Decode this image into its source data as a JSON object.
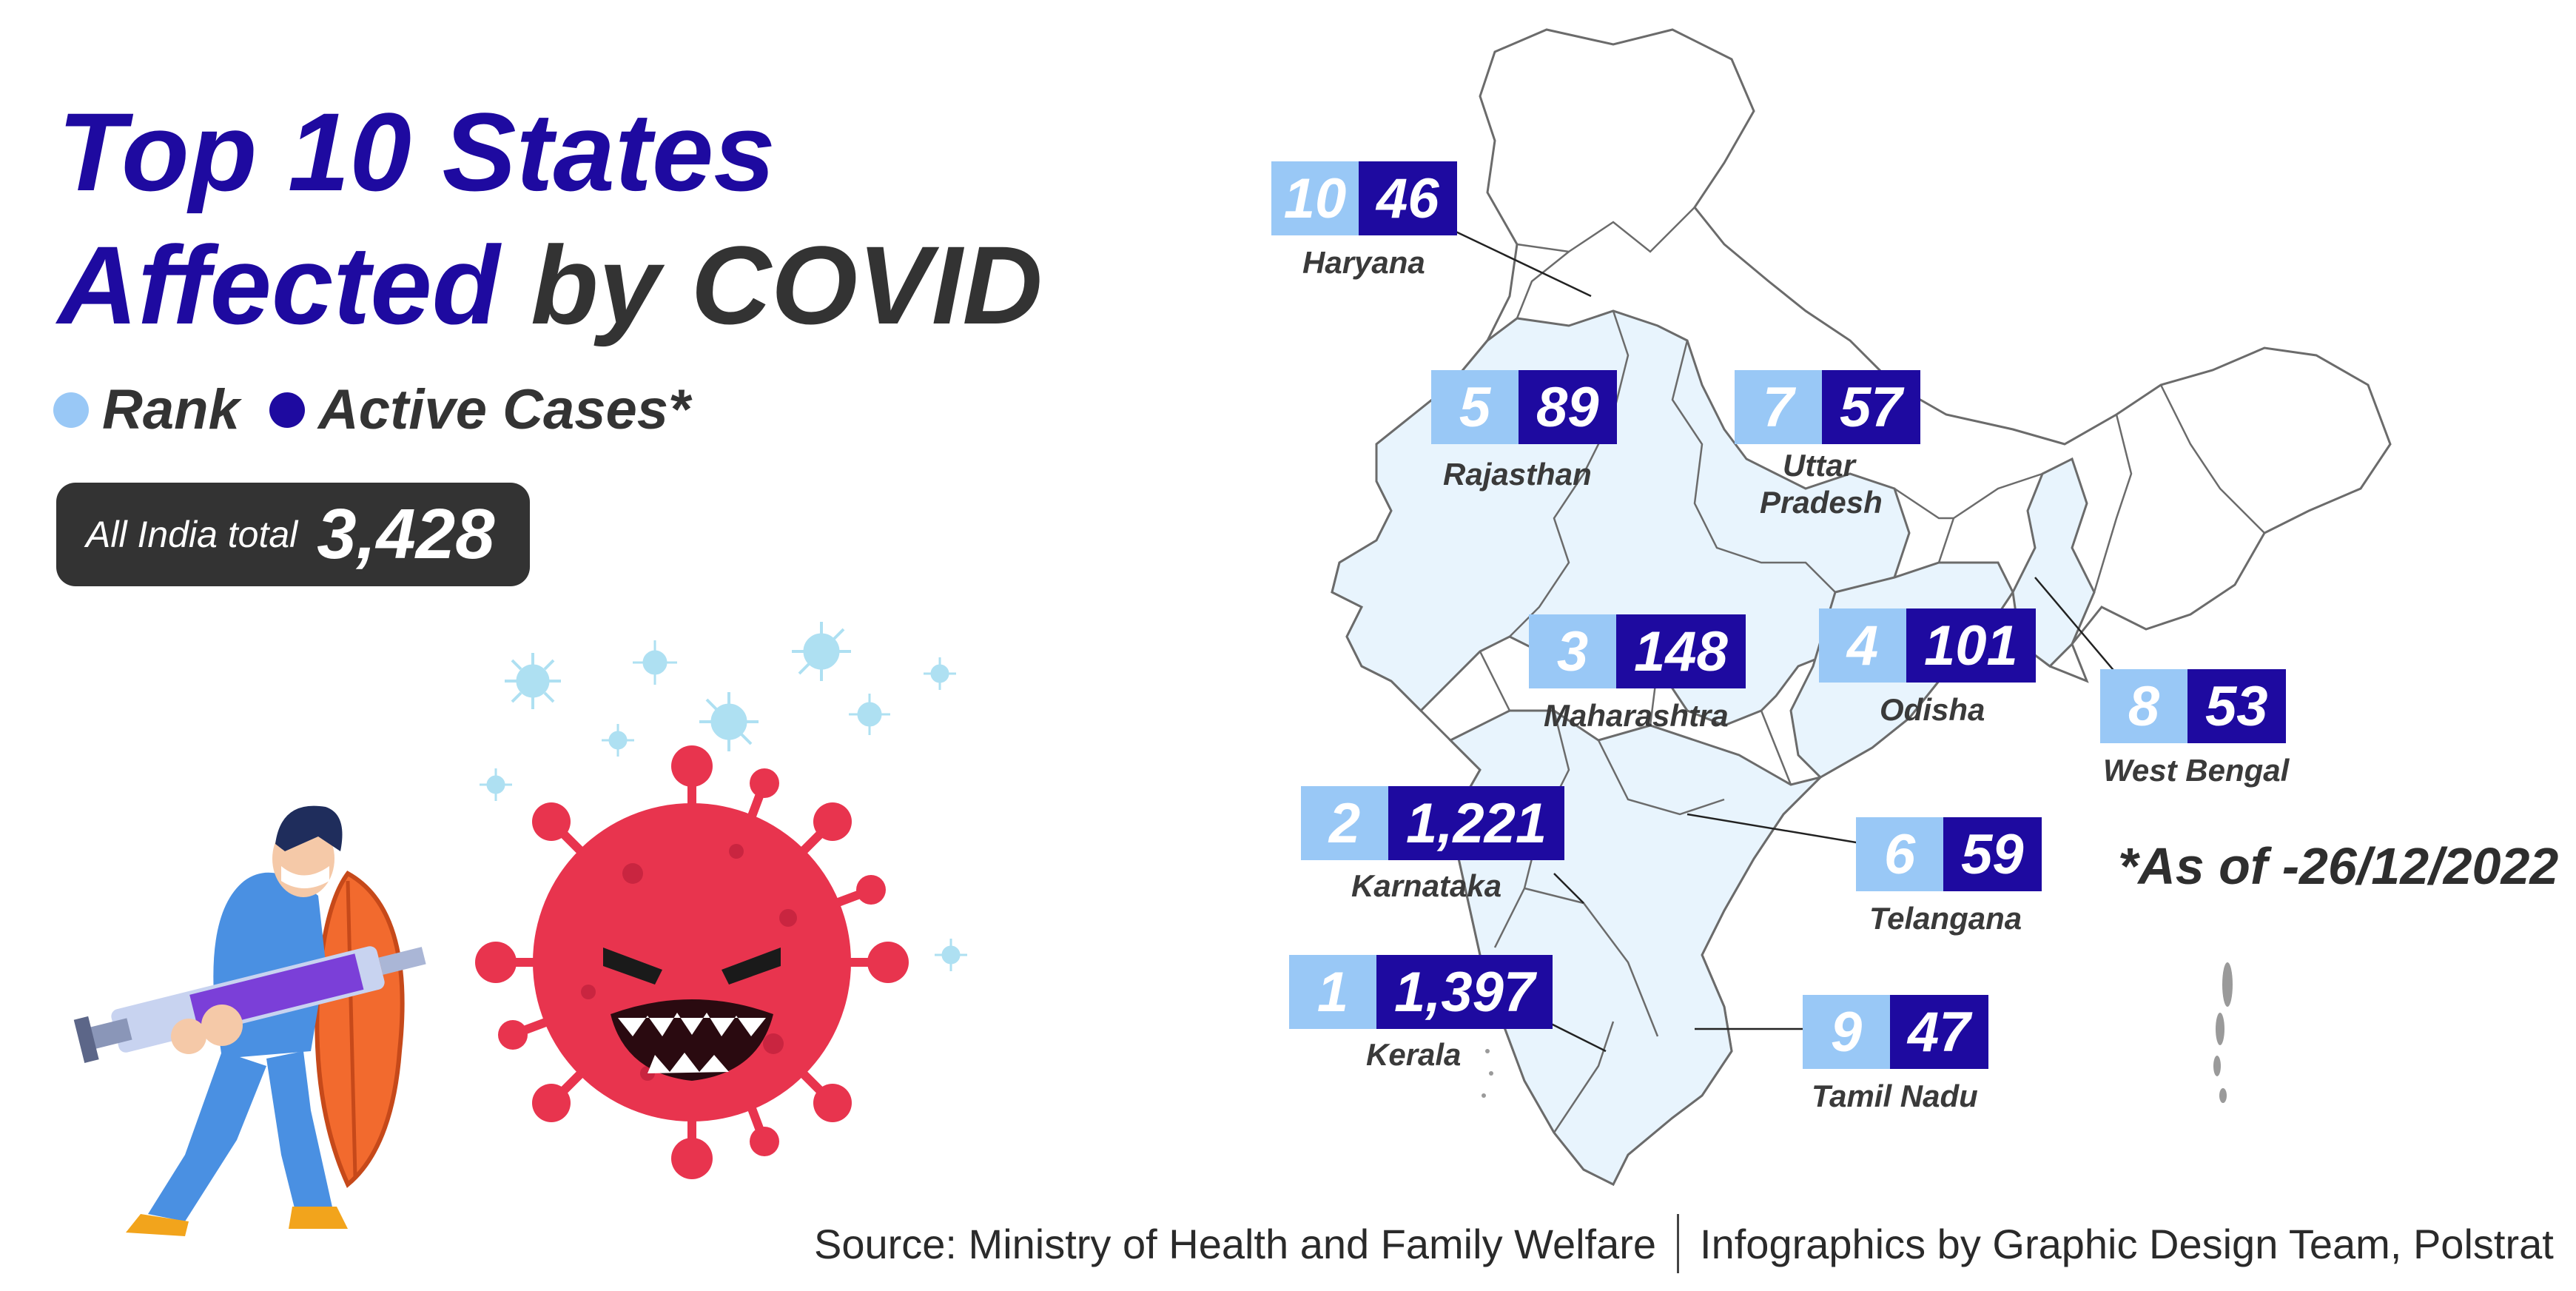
{
  "title": {
    "line1": "Top 10 States",
    "line2_highlight": "Affected",
    "line2_rest": " by COVID"
  },
  "legend": {
    "rank_label": "Rank",
    "cases_label": "Active Cases*"
  },
  "total": {
    "label": "All India total",
    "value": "3,428"
  },
  "states": [
    {
      "name": "Haryana",
      "rank": "10",
      "cases": "46"
    },
    {
      "name": "Rajasthan",
      "rank": "5",
      "cases": "89"
    },
    {
      "name": "Uttar Pradesh",
      "line1": "Uttar",
      "line2": "Pradesh",
      "rank": "7",
      "cases": "57"
    },
    {
      "name": "Maharashtra",
      "rank": "3",
      "cases": "148"
    },
    {
      "name": "Odisha",
      "rank": "4",
      "cases": "101"
    },
    {
      "name": "West Bengal",
      "rank": "8",
      "cases": "53"
    },
    {
      "name": "Karnataka",
      "rank": "2",
      "cases": "1,221"
    },
    {
      "name": "Telangana",
      "rank": "6",
      "cases": "59"
    },
    {
      "name": "Kerala",
      "rank": "1",
      "cases": "1,397"
    },
    {
      "name": "Tamil Nadu",
      "rank": "9",
      "cases": "47"
    }
  ],
  "note": "*As of -26/12/2022",
  "footer": {
    "source": "Source: Ministry of Health and Family Welfare",
    "credit": "Infographics by Graphic Design Team, Polstrat"
  },
  "colors": {
    "title_blue": "#1e0aa0",
    "title_dark": "#333333",
    "rank_blue": "#99c8f6",
    "cases_navy": "#1e0aa0",
    "map_fill": "#e8f4fd",
    "map_stroke": "#6b6b6b",
    "virus_red": "#e8344e"
  },
  "illustration": {
    "icons": [
      "doctor-icon",
      "syringe-icon",
      "shield-icon",
      "virus-icon",
      "small-virus-icon"
    ]
  }
}
